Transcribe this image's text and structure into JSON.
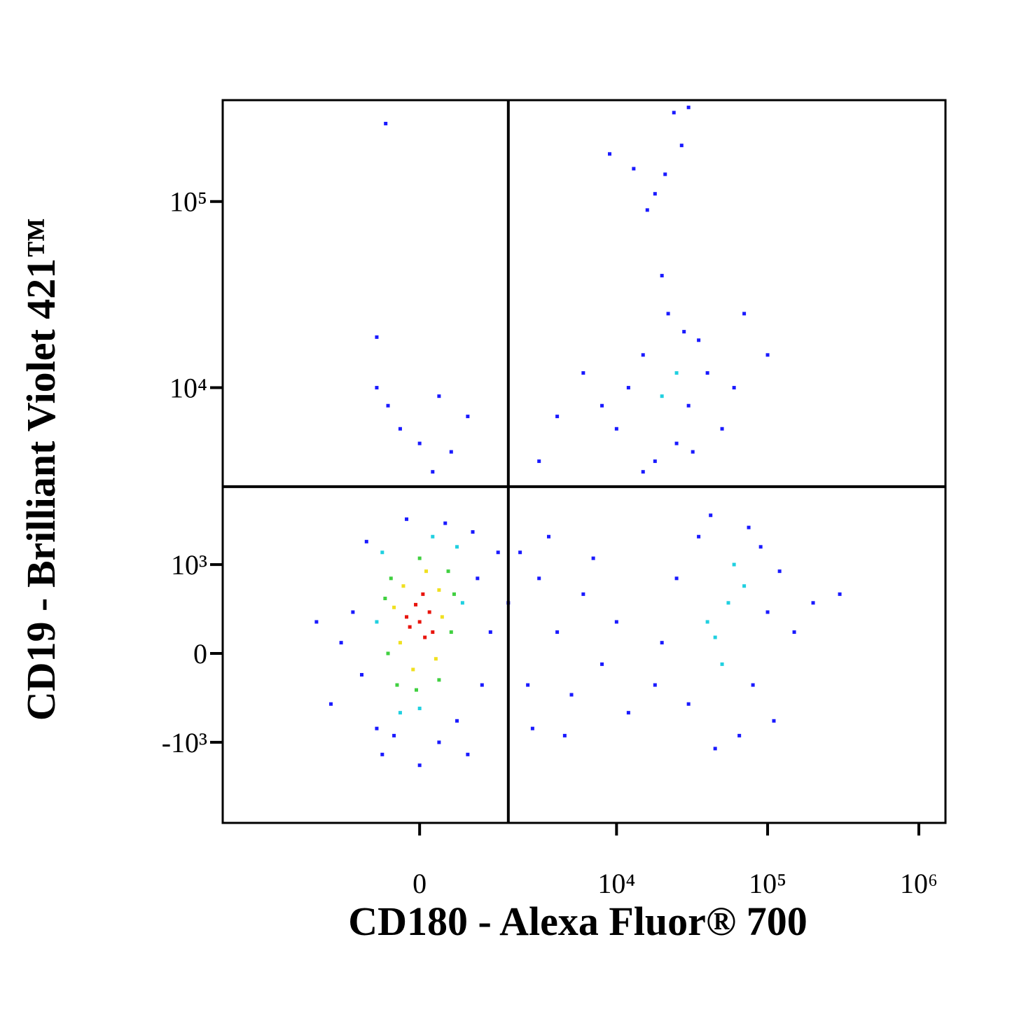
{
  "chart_data": {
    "type": "scatter",
    "xscale": "biexponential",
    "yscale": "biexponential",
    "x_label": "CD180 - Alexa Fluor® 700",
    "y_label": "CD19 - Brilliant Violet 421™",
    "xlim": [
      -10000,
      1500000
    ],
    "ylim": [
      -3000,
      350000
    ],
    "xticks": [
      0,
      {
        "value": 10000,
        "label": "10⁴"
      },
      {
        "value": 100000,
        "label": "10⁵"
      },
      {
        "value": 1000000,
        "label": "10⁶"
      }
    ],
    "yticks": [
      {
        "value": -1000,
        "label": "-10³"
      },
      0,
      {
        "value": 1000,
        "label": "10³"
      },
      {
        "value": 10000,
        "label": "10⁴"
      },
      {
        "value": 100000,
        "label": "10⁵"
      }
    ],
    "gates": {
      "x": 1800,
      "y": 2900
    },
    "series": [
      {
        "color": "#1a1aff",
        "x": [
          -1200,
          -1000,
          1000,
          1100,
          -900,
          900,
          -400,
          300,
          -700,
          600,
          0,
          -1500,
          1300,
          -200,
          400,
          -2300,
          -1800,
          1500,
          800,
          -600,
          1800,
          2500,
          3000,
          4000,
          2200,
          5000,
          6000,
          8000,
          3500,
          7000,
          10000,
          12000,
          2700,
          4500,
          30000,
          80000,
          100000,
          120000,
          35000,
          90000,
          25000,
          65000,
          150000,
          200000,
          45000,
          20000,
          110000,
          75000,
          18000,
          300000,
          42000,
          10000,
          15000,
          30000,
          35000,
          12000,
          25000,
          40000,
          18000,
          8000,
          50000,
          22000,
          28000,
          6000,
          60000,
          15000,
          32000,
          4000,
          100000,
          3000,
          70000,
          20000,
          16000,
          21000,
          27000,
          13000,
          24000,
          30000,
          9000,
          18000,
          -500,
          0,
          300,
          -300,
          500,
          -700,
          200,
          800,
          -540,
          -700
        ],
        "values": [
          400,
          -200,
          800,
          -300,
          1400,
          1600,
          -900,
          -1000,
          -800,
          -700,
          -1400,
          100,
          200,
          1900,
          1800,
          300,
          -500,
          1200,
          -1200,
          -1200,
          500,
          -300,
          800,
          200,
          1200,
          -400,
          600,
          -100,
          1500,
          1100,
          300,
          -600,
          -800,
          -900,
          -500,
          -300,
          400,
          900,
          1500,
          1300,
          800,
          -900,
          200,
          500,
          -1100,
          100,
          -700,
          1700,
          -300,
          600,
          2000,
          6000,
          15000,
          8000,
          18000,
          10000,
          5000,
          12000,
          4000,
          8000,
          6000,
          25000,
          20000,
          12000,
          10000,
          3500,
          4500,
          7000,
          15000,
          4000,
          25000,
          40000,
          90000,
          140000,
          200000,
          150000,
          300000,
          320000,
          180000,
          110000,
          8000,
          5000,
          9000,
          6000,
          4500,
          10000,
          3500,
          7000,
          262000,
          18700
        ]
      },
      {
        "color": "#20d0e0",
        "x": [
          -700,
          700,
          -600,
          600,
          0,
          200,
          -300,
          55000,
          40000,
          70000,
          50000,
          60000,
          45000,
          20000,
          25000
        ],
        "values": [
          300,
          500,
          1200,
          1300,
          -550,
          1500,
          -600,
          500,
          300,
          700,
          -100,
          1000,
          150,
          9000,
          12000
        ]
      },
      {
        "color": "#40d040",
        "x": [
          -500,
          500,
          -450,
          450,
          0,
          -50,
          300,
          -350,
          550,
          -550
        ],
        "values": [
          0,
          200,
          800,
          900,
          1100,
          -350,
          -250,
          -300,
          600,
          550
        ]
      },
      {
        "color": "#f0e020",
        "x": [
          -300,
          300,
          -250,
          250,
          100,
          -100,
          350,
          -400
        ],
        "values": [
          100,
          650,
          700,
          -50,
          900,
          -150,
          350,
          450
        ]
      },
      {
        "color": "#e8140c",
        "x": [
          0,
          -150,
          150,
          80,
          -60,
          200,
          -200,
          50
        ],
        "values": [
          300,
          250,
          400,
          150,
          480,
          200,
          350,
          600
        ]
      }
    ]
  }
}
